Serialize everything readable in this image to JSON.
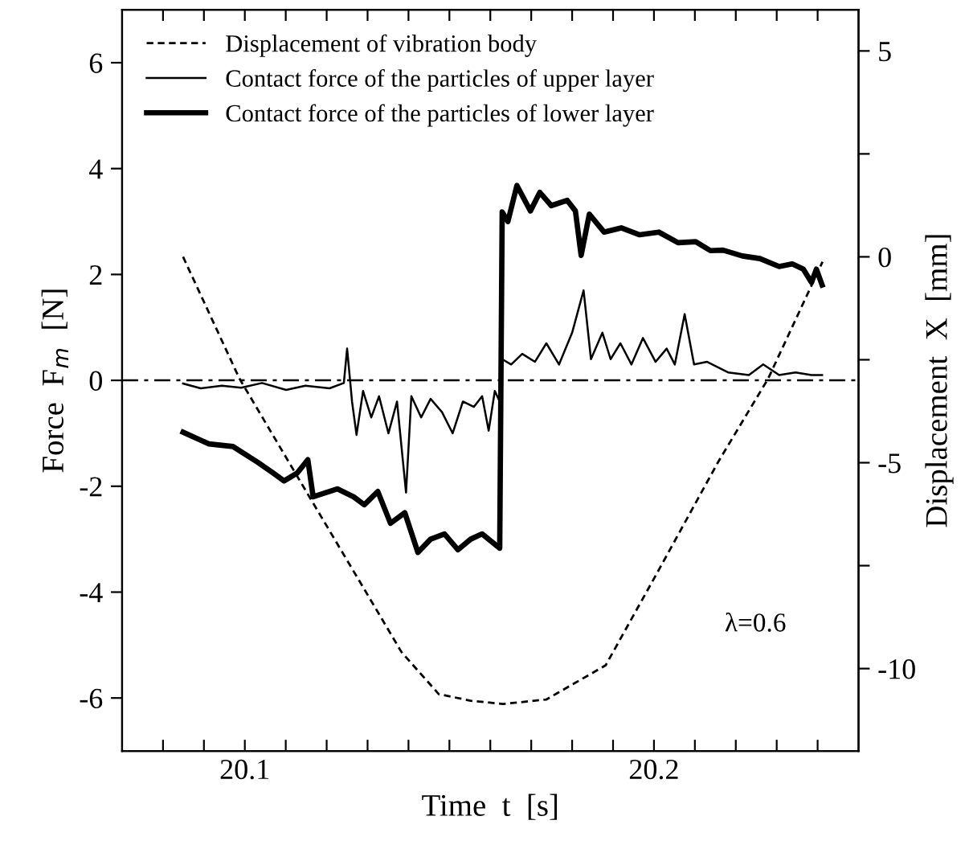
{
  "chart_data": {
    "type": "line",
    "xlabel": "Time  t  [s]",
    "ylabel": "Force  F$_{m}$  [N]",
    "y2label": "Displacement  X  [mm]",
    "xlim": [
      20.07,
      20.25
    ],
    "xticks": [
      {
        "value": 20.08,
        "label": null
      },
      {
        "value": 20.09,
        "label": null
      },
      20.1,
      {
        "value": 20.11,
        "label": null
      },
      {
        "value": 20.12,
        "label": null
      },
      {
        "value": 20.13,
        "label": null
      },
      {
        "value": 20.14,
        "label": null
      },
      {
        "value": 20.15,
        "label": null
      },
      {
        "value": 20.16,
        "label": null
      },
      {
        "value": 20.17,
        "label": null
      },
      {
        "value": 20.18,
        "label": null
      },
      {
        "value": 20.19,
        "label": null
      },
      20.2,
      {
        "value": 20.21,
        "label": null
      },
      {
        "value": 20.22,
        "label": null
      },
      {
        "value": 20.23,
        "label": null
      },
      {
        "value": 20.24,
        "label": null
      }
    ],
    "ylim": [
      -7,
      7
    ],
    "yticks": [
      -6,
      -4,
      -2,
      0,
      2,
      4,
      6
    ],
    "y2lim": [
      -12,
      6
    ],
    "y2ticks": [
      -10,
      {
        "value": -7.5,
        "label": null
      },
      -5,
      {
        "value": -2.5,
        "label": null
      },
      0,
      {
        "value": 2.5,
        "label": null
      },
      5
    ],
    "grid": false,
    "legend": "top left",
    "marker": "none",
    "ref_lines": [
      {
        "axis": "y",
        "value": 0,
        "label": null,
        "color": "#000000",
        "line_style": "dashdot"
      }
    ],
    "annotations": [
      "λ=0.6"
    ],
    "series": [
      {
        "name": "Displacement of vibration body",
        "color": "#000000",
        "axis": "y2",
        "line_style": "dashed",
        "x": [
          20.0849,
          20.0987,
          20.114,
          20.1293,
          20.1383,
          20.1474,
          20.1552,
          20.1631,
          20.1737,
          20.1882,
          20.2012,
          20.2157,
          20.2279,
          20.2412
        ],
        "values": [
          0.0,
          -2.96,
          -5.53,
          -8.09,
          -9.6,
          -10.62,
          -10.78,
          -10.86,
          -10.75,
          -9.92,
          -7.6,
          -4.98,
          -2.96,
          -0.12
        ]
      },
      {
        "name": "Contact force of the particles of upper layer",
        "color": "#000000",
        "line_style": "solid",
        "x": [
          20.0849,
          20.0892,
          20.0944,
          20.0991,
          20.1042,
          20.1101,
          20.1148,
          20.1207,
          20.1242,
          20.125,
          20.1262,
          20.1273,
          20.1289,
          20.1309,
          20.1328,
          20.1351,
          20.1372,
          20.1394,
          20.1407,
          20.1431,
          20.1454,
          20.1482,
          20.1508,
          20.1533,
          20.156,
          20.158,
          20.1596,
          20.1611,
          20.1623,
          20.1629,
          20.1651,
          20.1678,
          20.1709,
          20.1737,
          20.1768,
          20.18,
          20.1828,
          20.1846,
          20.1874,
          20.1894,
          20.1918,
          20.1945,
          20.1973,
          20.2004,
          20.2031,
          20.2051,
          20.2075,
          20.2098,
          20.213,
          20.2181,
          20.2232,
          20.2267,
          20.2306,
          20.2346,
          20.2385,
          20.2411
        ],
        "values": [
          -0.06,
          -0.15,
          -0.1,
          -0.14,
          -0.05,
          -0.18,
          -0.1,
          -0.15,
          -0.05,
          0.6,
          -0.4,
          -1.03,
          -0.2,
          -0.7,
          -0.3,
          -1.0,
          -0.4,
          -2.12,
          -0.3,
          -0.7,
          -0.35,
          -0.6,
          -1.0,
          -0.4,
          -0.5,
          -0.3,
          -0.95,
          -0.2,
          -0.4,
          0.4,
          0.3,
          0.5,
          0.35,
          0.7,
          0.3,
          0.9,
          1.7,
          0.4,
          0.9,
          0.4,
          0.7,
          0.3,
          0.8,
          0.35,
          0.6,
          0.3,
          1.25,
          0.3,
          0.35,
          0.15,
          0.1,
          0.3,
          0.1,
          0.15,
          0.1,
          0.1
        ]
      },
      {
        "name": "Contact force of the particles of lower layer",
        "color": "#000000",
        "line_style": "solid",
        "x": [
          20.0849,
          20.0912,
          20.0971,
          20.103,
          20.1069,
          20.1096,
          20.1128,
          20.1154,
          20.1167,
          20.1226,
          20.1266,
          20.1292,
          20.1325,
          20.1356,
          20.1391,
          20.1423,
          20.1454,
          20.1488,
          20.1521,
          20.1552,
          20.158,
          20.1623,
          20.1629,
          20.1643,
          20.1665,
          20.1698,
          20.1721,
          20.1749,
          20.1788,
          20.1808,
          20.1822,
          20.1842,
          20.1878,
          20.192,
          20.1965,
          20.2012,
          20.2059,
          20.2102,
          20.2138,
          20.2169,
          20.2216,
          20.2259,
          20.2306,
          20.2338,
          20.2365,
          20.2385,
          20.2397,
          20.2411
        ],
        "values": [
          -0.98,
          -1.2,
          -1.25,
          -1.54,
          -1.75,
          -1.9,
          -1.75,
          -1.5,
          -2.2,
          -2.05,
          -2.2,
          -2.35,
          -2.1,
          -2.7,
          -2.5,
          -3.25,
          -3.0,
          -2.9,
          -3.2,
          -3.0,
          -2.9,
          -3.17,
          3.18,
          3.0,
          3.68,
          3.2,
          3.55,
          3.3,
          3.4,
          3.2,
          2.36,
          3.14,
          2.8,
          2.88,
          2.75,
          2.8,
          2.6,
          2.62,
          2.45,
          2.46,
          2.35,
          2.3,
          2.15,
          2.2,
          2.1,
          1.85,
          2.1,
          1.8
        ]
      }
    ]
  }
}
